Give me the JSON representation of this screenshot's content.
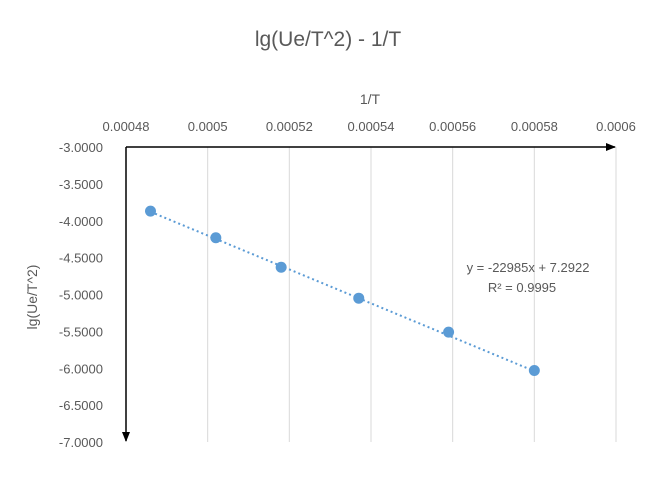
{
  "chart_data": {
    "type": "scatter",
    "title": "lg(Ue/T^2) - 1/T",
    "xlabel": "1/T",
    "ylabel": "lg(Ue/T^2)",
    "xlim": [
      0.00048,
      0.0006
    ],
    "ylim": [
      -7.0,
      -3.0
    ],
    "x_ticks": [
      "0.00048",
      "0.0005",
      "0.00052",
      "0.00054",
      "0.00056",
      "0.00058",
      "0.0006"
    ],
    "y_ticks": [
      "-3.0000",
      "-3.5000",
      "-4.0000",
      "-4.5000",
      "-5.0000",
      "-5.5000",
      "-6.0000",
      "-6.5000",
      "-7.0000"
    ],
    "x_axis_position": "top",
    "y_axis_inverted": true,
    "grid": {
      "vertical": true,
      "horizontal": false
    },
    "legend": "none",
    "point_color": "#5b9bd5",
    "trendline_color": "#5b9bd5",
    "series": [
      {
        "x": [
          0.000486,
          0.000502,
          0.000518,
          0.000537,
          0.000559,
          0.00058
        ],
        "y": [
          -3.87,
          -4.23,
          -4.63,
          -5.05,
          -5.51,
          -6.03
        ]
      }
    ],
    "trendline": {
      "type": "linear",
      "slope": -22985,
      "intercept": 7.2922,
      "x_range": [
        0.000486,
        0.00058
      ],
      "equation": "y = -22985x + 7.2922",
      "r_squared": "R² = 0.9995"
    }
  }
}
